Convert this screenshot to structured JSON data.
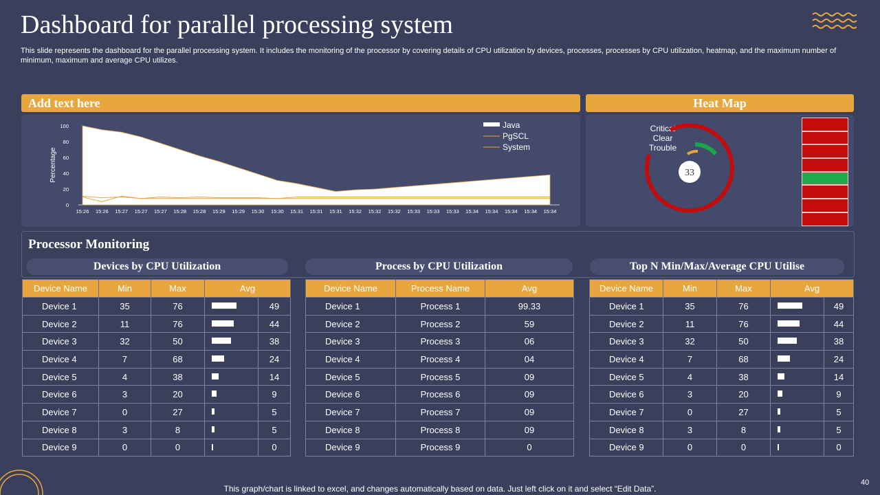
{
  "header": {
    "title": "Dashboard for parallel processing system",
    "description": "This slide represents the dashboard for the parallel processing system. It includes the monitoring of the processor by covering details of CPU utilization by devices, processes, processes by CPU utilization, heatmap, and the maximum number of minimum, maximum and average CPU utilizes."
  },
  "left_panel": {
    "heading": "Add text here"
  },
  "heat_panel": {
    "heading": "Heat Map",
    "legend": [
      "Critical",
      "Clear",
      "Trouble"
    ],
    "gauge_value": "33",
    "grid_colors": [
      "red",
      "red",
      "red",
      "red",
      "green",
      "red",
      "red",
      "red"
    ]
  },
  "chart_data": {
    "type": "area",
    "x": [
      "15:26",
      "15:26",
      "15:27",
      "15:27",
      "15:27",
      "15:28",
      "15:28",
      "15:29",
      "15:29",
      "15:30",
      "15:30",
      "15:31",
      "15:31",
      "15:31",
      "15:32",
      "15:32",
      "15:32",
      "15:33",
      "15:33",
      "15:33",
      "15:34",
      "15:34",
      "15:34",
      "15:34",
      "15:34"
    ],
    "ylabel": "Percentage",
    "ylim": [
      0,
      100
    ],
    "yticks": [
      "0",
      "20",
      "40",
      "60",
      "80",
      "100"
    ],
    "series": [
      {
        "name": "Java",
        "values": [
          100,
          95,
          92,
          86,
          78,
          70,
          62,
          55,
          47,
          39,
          31,
          27,
          22,
          17,
          19,
          20,
          22,
          24,
          26,
          28,
          30,
          32,
          34,
          36,
          38
        ]
      },
      {
        "name": "PgSCL",
        "values": [
          11,
          9,
          10,
          8,
          10,
          9,
          10,
          9,
          9,
          9,
          8,
          10,
          10,
          10,
          10,
          10,
          10,
          10,
          10,
          10,
          10,
          10,
          10,
          10,
          10
        ]
      },
      {
        "name": "System",
        "values": [
          10,
          4,
          11,
          8,
          8,
          8,
          8,
          8,
          8,
          8,
          8,
          8,
          8,
          8,
          8,
          8,
          8,
          8,
          8,
          8,
          8,
          8,
          8,
          8,
          8
        ]
      }
    ],
    "colors": {
      "Java": "#ffffff",
      "PgSCL": "#e8a63e",
      "System": "#e8a63e"
    }
  },
  "processor": {
    "title": "Processor Monitoring",
    "sections": [
      "Devices by CPU Utilization",
      "Process by CPU Utilization",
      "Top N Min/Max/Average CPU Utilise"
    ]
  },
  "table1": {
    "headers": [
      "Device Name",
      "Min",
      "Max",
      "Avg"
    ],
    "rows": [
      [
        "Device  1",
        "35",
        "76",
        "49"
      ],
      [
        "Device  2",
        "11",
        "76",
        "44"
      ],
      [
        "Device  3",
        "32",
        "50",
        "38"
      ],
      [
        "Device  4",
        "7",
        "68",
        "24"
      ],
      [
        "Device  5",
        "4",
        "38",
        "14"
      ],
      [
        "Device  6",
        "3",
        "20",
        "9"
      ],
      [
        "Device  7",
        "0",
        "27",
        "5"
      ],
      [
        "Device  8",
        "3",
        "8",
        "5"
      ],
      [
        "Device  9",
        "0",
        "0",
        "0"
      ]
    ]
  },
  "table2": {
    "headers": [
      "Device Name",
      "Process  Name",
      "Avg"
    ],
    "rows": [
      [
        "Device  1",
        "Process 1",
        "99.33"
      ],
      [
        "Device  2",
        "Process 2",
        "59"
      ],
      [
        "Device  3",
        "Process 3",
        "06"
      ],
      [
        "Device  4",
        "Process 4",
        "04"
      ],
      [
        "Device  5",
        "Process 5",
        "09"
      ],
      [
        "Device  6",
        "Process 6",
        "09"
      ],
      [
        "Device  7",
        "Process 7",
        "09"
      ],
      [
        "Device  8",
        "Process 8",
        "09"
      ],
      [
        "Device  9",
        "Process 9",
        "0"
      ]
    ]
  },
  "table3": {
    "headers": [
      "Device Name",
      "Min",
      "Max",
      "Avg"
    ],
    "rows": [
      [
        "Device  1",
        "35",
        "76",
        "49"
      ],
      [
        "Device  2",
        "11",
        "76",
        "44"
      ],
      [
        "Device  3",
        "32",
        "50",
        "38"
      ],
      [
        "Device  4",
        "7",
        "68",
        "24"
      ],
      [
        "Device  5",
        "4",
        "38",
        "14"
      ],
      [
        "Device  6",
        "3",
        "20",
        "9"
      ],
      [
        "Device  7",
        "0",
        "27",
        "5"
      ],
      [
        "Device  8",
        "3",
        "8",
        "5"
      ],
      [
        "Device  9",
        "0",
        "0",
        "0"
      ]
    ]
  },
  "footer": {
    "note": "This graph/chart is linked to excel, and changes automatically based on data. Just left click on it and select “Edit Data”.",
    "page_number": "40"
  }
}
